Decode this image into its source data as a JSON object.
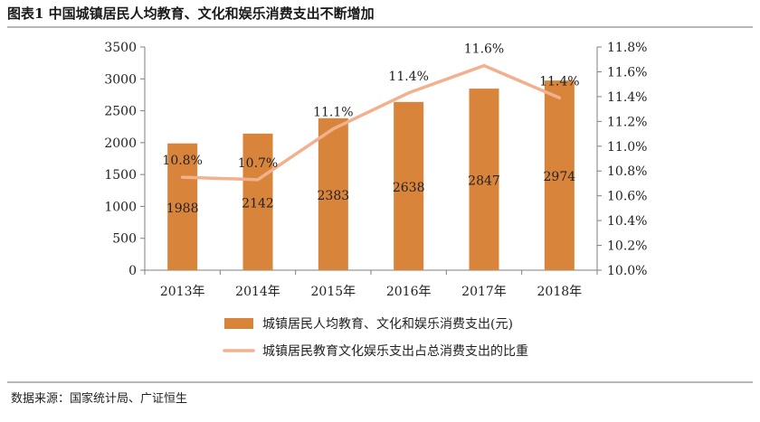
{
  "title": "图表1 中国城镇居民人均教育、文化和娱乐消费支出不断增加",
  "source": "数据来源：国家统计局、广证恒生",
  "chart_data": {
    "type": "bar",
    "categories": [
      "2013年",
      "2014年",
      "2015年",
      "2016年",
      "2017年",
      "2018年"
    ],
    "series": [
      {
        "name": "城镇居民人均教育、文化和娱乐消费支出(元)",
        "type": "bar",
        "axis": "left",
        "values": [
          1988,
          2142,
          2383,
          2638,
          2847,
          2974
        ],
        "labels": [
          "1988",
          "2142",
          "2383",
          "2638",
          "2847",
          "2974"
        ],
        "color": "#d9843b"
      },
      {
        "name": "城镇居民教育文化娱乐支出占总消费支出的比重",
        "type": "line",
        "axis": "right",
        "values": [
          10.75,
          10.73,
          11.14,
          11.43,
          11.65,
          11.39
        ],
        "labels": [
          "10.8%",
          "10.7%",
          "11.1%",
          "11.4%",
          "11.6%",
          "11.4%"
        ],
        "color": "#f2b08f"
      }
    ],
    "y_left": {
      "min": 0,
      "max": 3500,
      "ticks": [
        "0",
        "500",
        "1000",
        "1500",
        "2000",
        "2500",
        "3000",
        "3500"
      ]
    },
    "y_right": {
      "min": 10.0,
      "max": 11.8,
      "ticks": [
        "10.0%",
        "10.2%",
        "10.4%",
        "10.6%",
        "10.8%",
        "11.0%",
        "11.2%",
        "11.4%",
        "11.6%",
        "11.8%"
      ]
    },
    "grid": false,
    "legend_position": "bottom"
  }
}
